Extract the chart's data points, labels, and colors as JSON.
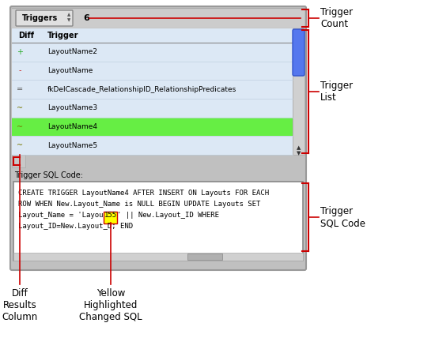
{
  "outer_bg": "#ffffff",
  "panel_bg": "#b8b8b8",
  "triggers_btn_text": "Triggers",
  "trigger_count": "6",
  "header_diff": "Diff",
  "header_trigger": "Trigger",
  "list_rows": [
    {
      "diff": "+",
      "name": "LayoutName2",
      "bg": "#dce8f5",
      "diff_color": "#22aa22"
    },
    {
      "diff": "-",
      "name": "LayoutName",
      "bg": "#dce8f5",
      "diff_color": "#cc2222"
    },
    {
      "diff": "=",
      "name": "fkDelCascade_RelationshipID_RelationshipPredicates",
      "bg": "#dce8f5",
      "diff_color": "#555555"
    },
    {
      "diff": "~",
      "name": "LayoutName3",
      "bg": "#dce8f5",
      "diff_color": "#777700"
    },
    {
      "diff": "~",
      "name": "LayoutName4",
      "bg": "#66ee44",
      "diff_color": "#777700"
    },
    {
      "diff": "~",
      "name": "LayoutName5",
      "bg": "#dce8f5",
      "diff_color": "#777700"
    }
  ],
  "sql_label": "Trigger SQL Code:",
  "sql_line1": "CREATE TRIGGER LayoutName4 AFTER INSERT ON Layouts FOR EACH",
  "sql_line2": "ROW WHEN New.Layout_Name is NULL BEGIN UPDATE Layouts SET",
  "sql_line3_pre": "Layout_Name = 'Layou",
  "sql_line3_hi": "155",
  "sql_line3_post": "' || New.Layout_ID WHERE",
  "sql_line4": "Layout_ID=New.Layout_D; END",
  "sql_highlight_color": "#ffff00",
  "sql_highlight_border": "#cc0000",
  "arrow_color": "#cc0000",
  "ann_trigger_count": "Trigger\nCount",
  "ann_trigger_list": "Trigger\nList",
  "ann_trigger_sql": "Trigger\nSQL Code",
  "ann_diff_col": "Diff\nResults\nColumn",
  "ann_yellow": "Yellow\nHighlighted\nChanged SQL",
  "font_size": 7.0,
  "annotation_font_size": 8.5
}
